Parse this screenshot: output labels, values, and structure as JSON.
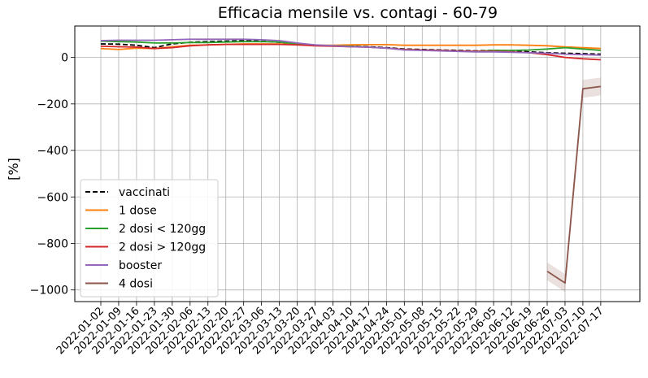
{
  "chart_data": {
    "type": "line",
    "title": "Efficacia mensile vs. contagi - 60-79",
    "xlabel": "",
    "ylabel": "[%]",
    "ylim": [
      -1050,
      135
    ],
    "yticks": [
      0,
      -200,
      -400,
      -600,
      -800,
      -1000
    ],
    "ytick_labels": [
      "0",
      "−200",
      "−400",
      "−600",
      "−800",
      "−1000"
    ],
    "grid": true,
    "legend_position": "lower-left",
    "categories": [
      "2022-01-02",
      "2022-01-09",
      "2022-01-16",
      "2022-01-23",
      "2022-01-30",
      "2022-02-06",
      "2022-02-13",
      "2022-02-20",
      "2022-02-27",
      "2022-03-06",
      "2022-03-13",
      "2022-03-20",
      "2022-03-27",
      "2022-04-03",
      "2022-04-10",
      "2022-04-17",
      "2022-04-24",
      "2022-05-01",
      "2022-05-08",
      "2022-05-15",
      "2022-05-22",
      "2022-05-29",
      "2022-06-05",
      "2022-06-12",
      "2022-06-19",
      "2022-06-26",
      "2022-07-03",
      "2022-07-10",
      "2022-07-17"
    ],
    "series": [
      {
        "name": "vaccinati",
        "color": "#000000",
        "dash": true,
        "values": [
          58,
          57,
          52,
          42,
          58,
          65,
          68,
          70,
          72,
          70,
          65,
          58,
          52,
          50,
          48,
          46,
          42,
          36,
          34,
          32,
          30,
          28,
          30,
          28,
          24,
          20,
          18,
          16,
          14
        ]
      },
      {
        "name": "1 dose",
        "color": "#ff7f0e",
        "values": [
          38,
          34,
          40,
          38,
          45,
          52,
          54,
          56,
          58,
          58,
          58,
          55,
          52,
          52,
          54,
          55,
          55,
          52,
          52,
          52,
          52,
          52,
          54,
          54,
          52,
          50,
          45,
          42,
          38
        ]
      },
      {
        "name": "2 dosi < 120gg",
        "color": "#2ca02c",
        "values": [
          70,
          68,
          66,
          62,
          62,
          64,
          64,
          66,
          68,
          68,
          66,
          58,
          52,
          50,
          48,
          44,
          40,
          34,
          32,
          30,
          28,
          26,
          30,
          30,
          32,
          36,
          42,
          36,
          30
        ]
      },
      {
        "name": "2 dosi > 120gg",
        "color": "#d62728",
        "values": [
          48,
          46,
          44,
          38,
          42,
          50,
          54,
          56,
          56,
          56,
          56,
          54,
          50,
          48,
          46,
          44,
          40,
          34,
          32,
          30,
          28,
          26,
          26,
          24,
          20,
          12,
          0,
          -6,
          -10
        ]
      },
      {
        "name": "booster",
        "color": "#9467bd",
        "values": [
          72,
          74,
          74,
          74,
          76,
          78,
          78,
          78,
          78,
          76,
          72,
          62,
          54,
          50,
          46,
          44,
          40,
          32,
          30,
          28,
          26,
          24,
          24,
          22,
          20,
          18,
          14,
          12,
          10
        ]
      },
      {
        "name": "4 dosi",
        "color": "#8c564b",
        "values": [
          null,
          null,
          null,
          null,
          null,
          null,
          null,
          null,
          null,
          null,
          null,
          null,
          null,
          null,
          null,
          null,
          null,
          null,
          null,
          null,
          null,
          null,
          null,
          null,
          null,
          -920,
          -970,
          -135,
          -125
        ]
      }
    ]
  }
}
